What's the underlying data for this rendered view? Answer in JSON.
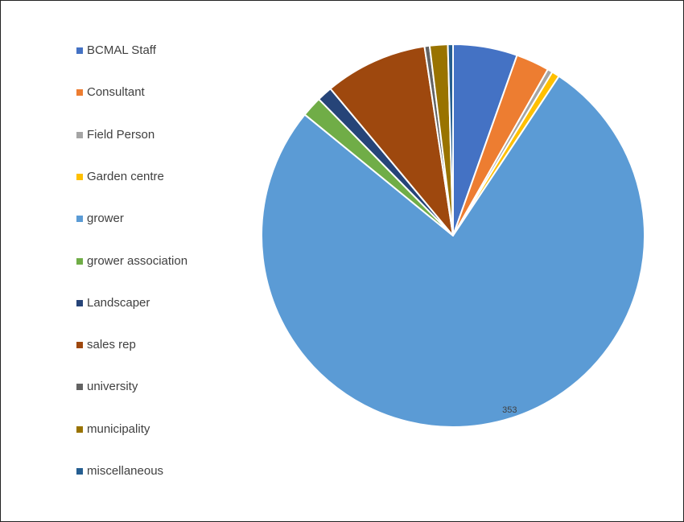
{
  "chart_data": {
    "type": "pie",
    "title": "",
    "series": [
      {
        "name": "BCMAL Staff",
        "value": 25,
        "color": "#4472C4"
      },
      {
        "name": "Consultant",
        "value": 13,
        "color": "#ED7D31"
      },
      {
        "name": "Field Person",
        "value": 2,
        "color": "#A5A5A5"
      },
      {
        "name": "Garden centre",
        "value": 3,
        "color": "#FFC000"
      },
      {
        "name": "grower",
        "value": 353,
        "color": "#5B9BD5",
        "data_label": "353"
      },
      {
        "name": "grower association",
        "value": 8,
        "color": "#70AD47"
      },
      {
        "name": "Landscaper",
        "value": 6,
        "color": "#264478"
      },
      {
        "name": "sales rep",
        "value": 40,
        "color": "#9E480E"
      },
      {
        "name": "university",
        "value": 2,
        "color": "#636363"
      },
      {
        "name": "municipality",
        "value": 7,
        "color": "#997300"
      },
      {
        "name": "miscellaneous",
        "value": 2,
        "color": "#255E91"
      }
    ],
    "legend": "left"
  }
}
